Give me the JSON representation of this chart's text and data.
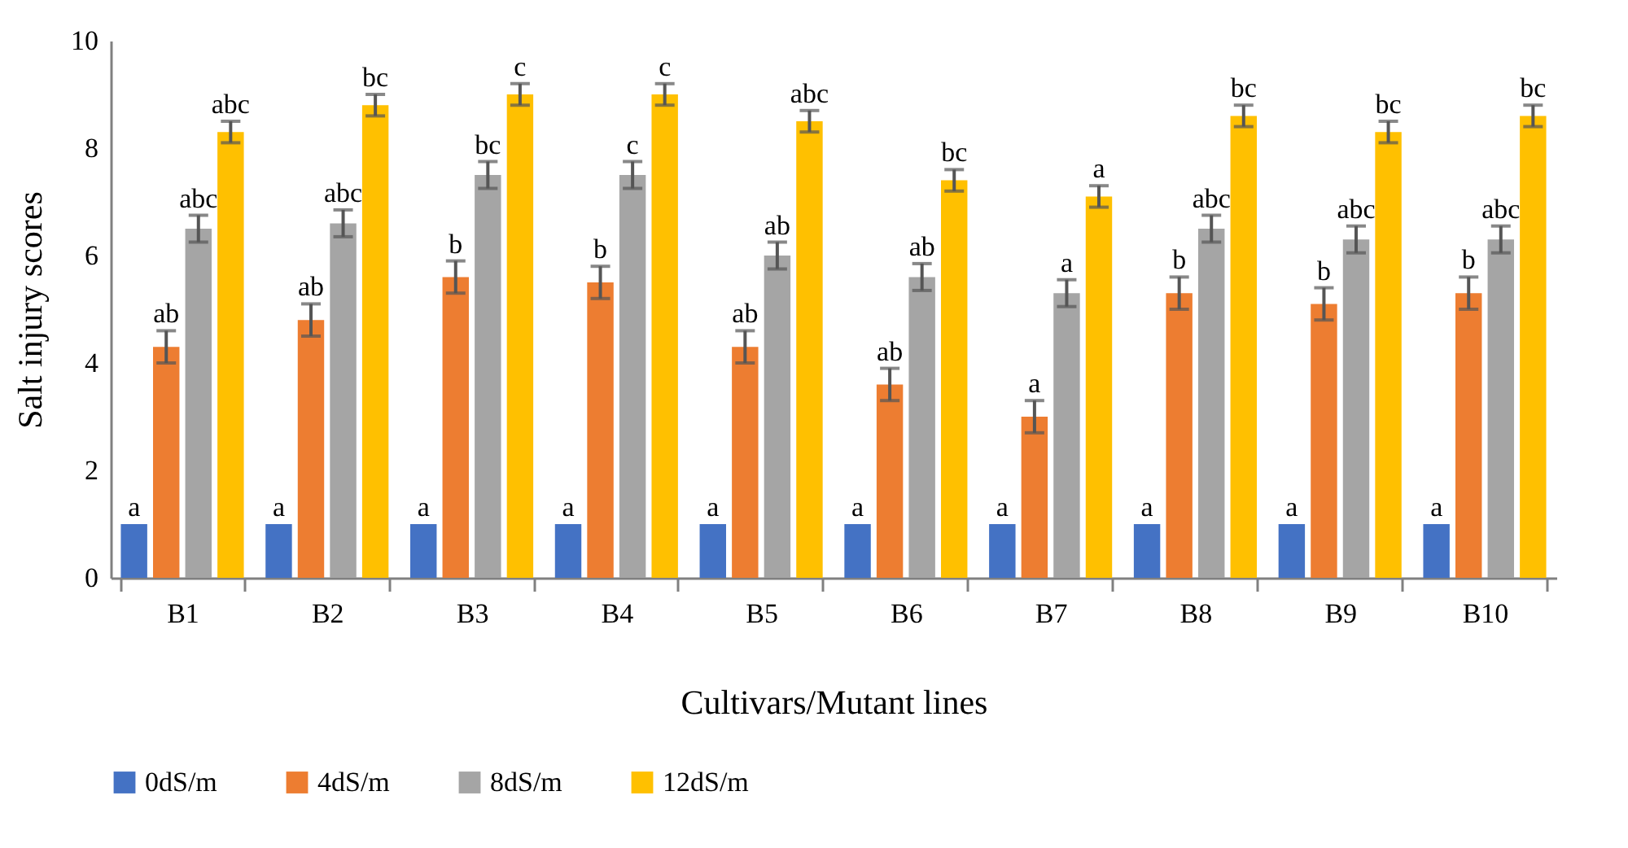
{
  "chart_data": {
    "type": "bar",
    "xlabel": "Cultivars/Mutant lines",
    "ylabel": "Salt injury scores",
    "categories": [
      "B1",
      "B2",
      "B3",
      "B4",
      "B5",
      "B6",
      "B7",
      "B8",
      "B9",
      "B10"
    ],
    "ylim": [
      0,
      10
    ],
    "yticks": [
      0,
      2,
      4,
      6,
      8,
      10
    ],
    "legend": "bottom",
    "series": [
      {
        "name": "0dS/m",
        "color": "#4472c4",
        "values": [
          1,
          1,
          1,
          1,
          1,
          1,
          1,
          1,
          1,
          1
        ],
        "value_labels": [
          "a",
          "a",
          "a",
          "a",
          "a",
          "a",
          "a",
          "a",
          "a",
          "a"
        ]
      },
      {
        "name": "4dS/m",
        "color": "#ed7d31",
        "values": [
          4.3,
          4.8,
          5.6,
          5.5,
          4.3,
          3.6,
          3.0,
          5.3,
          5.1,
          5.3
        ],
        "errors": [
          0.3,
          0.3,
          0.3,
          0.3,
          0.3,
          0.3,
          0.3,
          0.3,
          0.3,
          0.3
        ],
        "value_labels": [
          "ab",
          "ab",
          "b",
          "b",
          "ab",
          "ab",
          "a",
          "b",
          "b",
          "b"
        ]
      },
      {
        "name": "8dS/m",
        "color": "#a5a5a5",
        "values": [
          6.5,
          6.6,
          7.5,
          7.5,
          6.0,
          5.6,
          5.3,
          6.5,
          6.3,
          6.3
        ],
        "errors": [
          0.25,
          0.25,
          0.25,
          0.25,
          0.25,
          0.25,
          0.25,
          0.25,
          0.25,
          0.25
        ],
        "value_labels": [
          "abc",
          "abc",
          "bc",
          "c",
          "ab",
          "ab",
          "a",
          "abc",
          "abc",
          "abc"
        ]
      },
      {
        "name": "12dS/m",
        "color": "#ffc000",
        "values": [
          8.3,
          8.8,
          9.0,
          9.0,
          8.5,
          7.4,
          7.1,
          8.6,
          8.3,
          8.6
        ],
        "errors": [
          0.2,
          0.2,
          0.2,
          0.2,
          0.2,
          0.2,
          0.2,
          0.2,
          0.2,
          0.2
        ],
        "value_labels": [
          "abc",
          "bc",
          "c",
          "c",
          "abc",
          "bc",
          "a",
          "bc",
          "bc",
          "bc"
        ]
      }
    ]
  }
}
